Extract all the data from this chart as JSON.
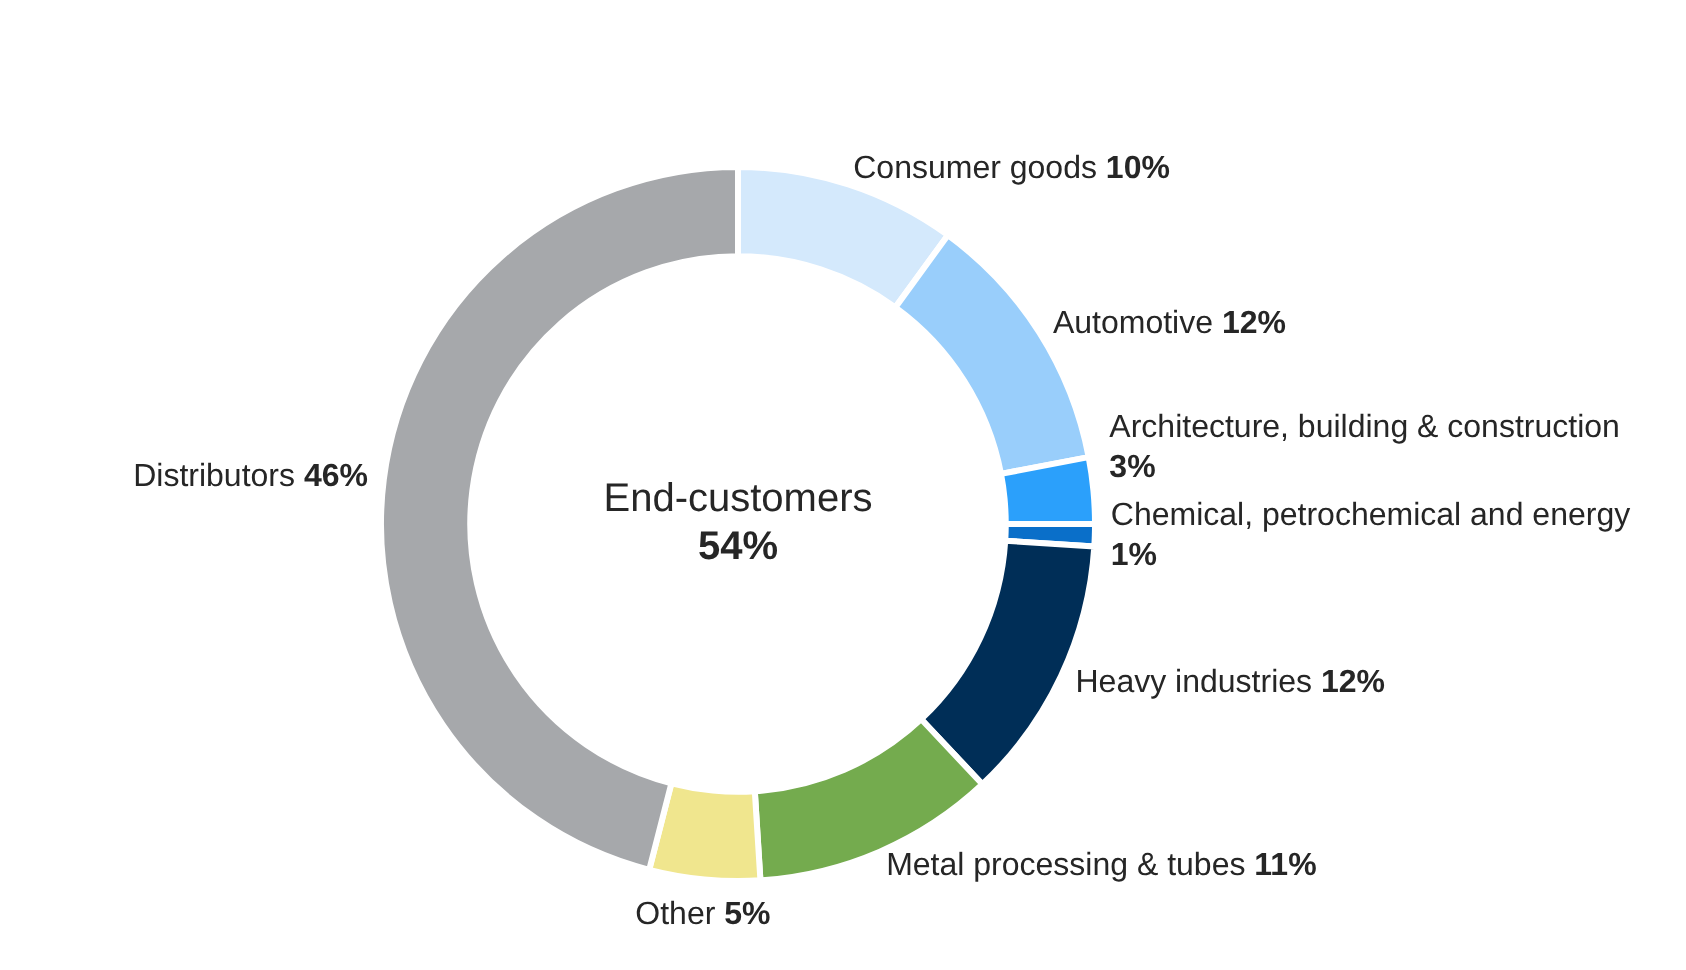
{
  "chart_data": {
    "type": "donut",
    "categories": [
      "Consumer goods",
      "Automotive",
      "Architecture, building & construction",
      "Chemical, petrochemical and energy",
      "Heavy industries",
      "Metal processing & tubes",
      "Other",
      "Distributors"
    ],
    "values": [
      10,
      12,
      3,
      1,
      12,
      11,
      5,
      46
    ],
    "value_labels": [
      "10%",
      "12%",
      "3%",
      "1%",
      "12%",
      "11%",
      "5%",
      "46%"
    ],
    "colors": [
      "#d4e9fc",
      "#99cefb",
      "#2ba0fb",
      "#0a6fc9",
      "#002e57",
      "#74ab4e",
      "#f0e68e",
      "#a6a8ab"
    ],
    "annotations": [
      "End-customers",
      "54%"
    ],
    "legend": false
  }
}
